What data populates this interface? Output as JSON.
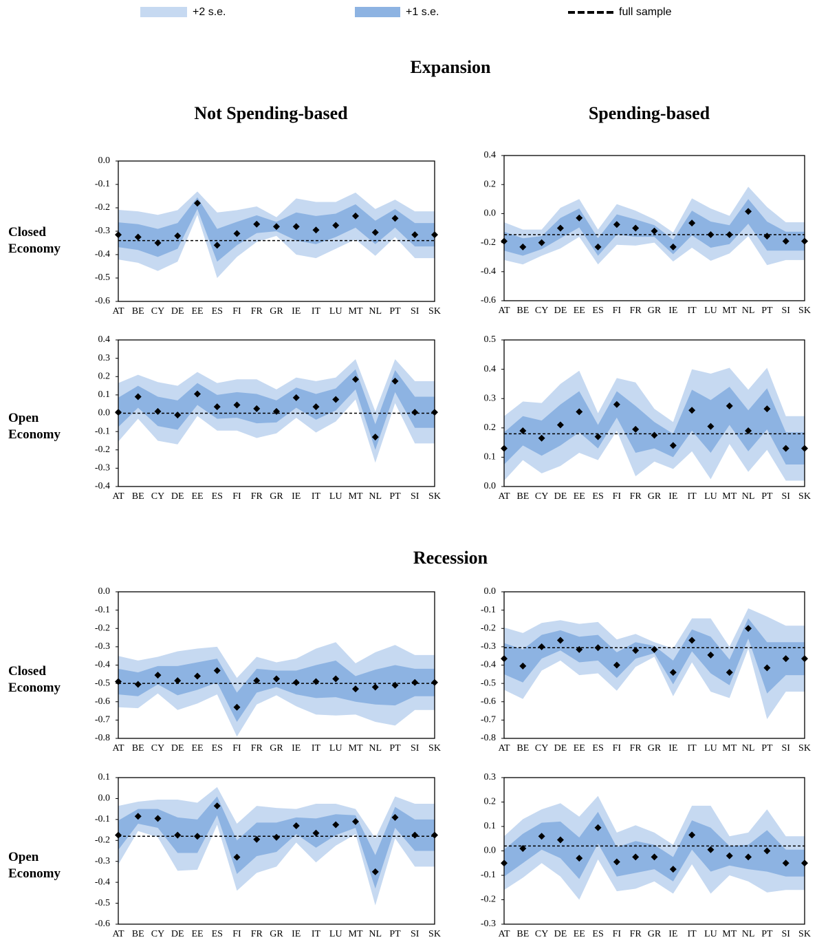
{
  "legend": [
    {
      "name": "+2 s.e.",
      "color": "#c6d9f1"
    },
    {
      "name": "+1 s.e.",
      "color": "#8db3e2"
    },
    {
      "name": "full sample",
      "color": "#000000"
    }
  ],
  "sections": [
    "Expansion",
    "Recession"
  ],
  "columns": [
    "Not Spending-based",
    "Spending-based"
  ],
  "row_labels": [
    "Closed Economy",
    "Open Economy",
    "Closed Economy",
    "Open Economy"
  ],
  "chart_data": [
    {
      "type": "band",
      "categories": [
        "AT",
        "BE",
        "CY",
        "DE",
        "EE",
        "ES",
        "FI",
        "FR",
        "GR",
        "IE",
        "IT",
        "LU",
        "MT",
        "NL",
        "PT",
        "SI",
        "SK"
      ],
      "values": [
        -0.315,
        -0.325,
        -0.35,
        -0.32,
        -0.18,
        -0.36,
        -0.31,
        -0.27,
        -0.28,
        -0.28,
        -0.295,
        -0.275,
        -0.235,
        -0.305,
        -0.245,
        -0.315,
        -0.315
      ],
      "se": [
        0.053,
        0.055,
        0.06,
        0.055,
        0.025,
        0.07,
        0.05,
        0.038,
        0.02,
        0.06,
        0.06,
        0.05,
        0.05,
        0.05,
        0.04,
        0.05,
        0.05
      ],
      "full_sample": -0.34,
      "ylim": [
        -0.6,
        0
      ],
      "yticks": [
        {
          "value": -0.6,
          "label": "-0.6"
        },
        {
          "value": -0.5,
          "label": "-0.5"
        },
        {
          "value": -0.4,
          "label": "-0.4"
        },
        {
          "value": -0.3,
          "label": "-0.3"
        },
        {
          "value": -0.2,
          "label": "-0.2"
        },
        {
          "value": -0.1,
          "label": "-0.1"
        },
        {
          "value": 0,
          "label": "0.0"
        }
      ]
    },
    {
      "type": "band",
      "categories": [
        "AT",
        "BE",
        "CY",
        "DE",
        "EE",
        "ES",
        "FI",
        "FR",
        "GR",
        "IE",
        "IT",
        "LU",
        "MT",
        "NL",
        "PT",
        "SI",
        "SK"
      ],
      "values": [
        -0.19,
        -0.23,
        -0.2,
        -0.1,
        -0.03,
        -0.23,
        -0.075,
        -0.1,
        -0.12,
        -0.23,
        -0.065,
        -0.145,
        -0.145,
        0.015,
        -0.155,
        -0.19,
        -0.19
      ],
      "se": [
        0.065,
        0.06,
        0.045,
        0.07,
        0.065,
        0.06,
        0.07,
        0.06,
        0.04,
        0.05,
        0.085,
        0.09,
        0.065,
        0.085,
        0.1,
        0.065,
        0.065
      ],
      "full_sample": -0.145,
      "ylim": [
        -0.6,
        0.4
      ],
      "yticks": [
        {
          "value": -0.6,
          "label": "-0.6"
        },
        {
          "value": -0.4,
          "label": "-0.4"
        },
        {
          "value": -0.2,
          "label": "-0.2"
        },
        {
          "value": 0,
          "label": "0.0"
        },
        {
          "value": 0.2,
          "label": "0.2"
        },
        {
          "value": 0.4,
          "label": "0.4"
        }
      ]
    },
    {
      "type": "band",
      "categories": [
        "AT",
        "BE",
        "CY",
        "DE",
        "EE",
        "ES",
        "FI",
        "FR",
        "GR",
        "IE",
        "IT",
        "LU",
        "MT",
        "NL",
        "PT",
        "SI",
        "SK"
      ],
      "values": [
        0.005,
        0.09,
        0.01,
        -0.01,
        0.105,
        0.035,
        0.045,
        0.025,
        0.01,
        0.085,
        0.035,
        0.075,
        0.185,
        -0.13,
        0.175,
        0.005,
        0.005
      ],
      "se": [
        0.08,
        0.06,
        0.08,
        0.08,
        0.06,
        0.065,
        0.07,
        0.08,
        0.06,
        0.055,
        0.07,
        0.06,
        0.055,
        0.07,
        0.06,
        0.085,
        0.085
      ],
      "full_sample": 0,
      "ylim": [
        -0.4,
        0.4
      ],
      "yticks": [
        {
          "value": -0.4,
          "label": "-0.4"
        },
        {
          "value": -0.3,
          "label": "-0.3"
        },
        {
          "value": -0.2,
          "label": "-0.2"
        },
        {
          "value": -0.1,
          "label": "-0.1"
        },
        {
          "value": 0,
          "label": "0.0"
        },
        {
          "value": 0.1,
          "label": "0.1"
        },
        {
          "value": 0.2,
          "label": "0.2"
        },
        {
          "value": 0.3,
          "label": "0.3"
        },
        {
          "value": 0.4,
          "label": "0.4"
        }
      ]
    },
    {
      "type": "band",
      "categories": [
        "AT",
        "BE",
        "CY",
        "DE",
        "EE",
        "ES",
        "FI",
        "FR",
        "GR",
        "IE",
        "IT",
        "LU",
        "MT",
        "NL",
        "PT",
        "SI",
        "SK"
      ],
      "values": [
        0.13,
        0.19,
        0.165,
        0.21,
        0.255,
        0.17,
        0.28,
        0.195,
        0.175,
        0.14,
        0.26,
        0.205,
        0.275,
        0.19,
        0.265,
        0.13,
        0.13
      ],
      "se": [
        0.055,
        0.05,
        0.06,
        0.07,
        0.07,
        0.04,
        0.045,
        0.08,
        0.045,
        0.04,
        0.07,
        0.09,
        0.065,
        0.07,
        0.07,
        0.055,
        0.055
      ],
      "full_sample": 0.18,
      "ylim": [
        0,
        0.5
      ],
      "yticks": [
        {
          "value": 0,
          "label": "0.0"
        },
        {
          "value": 0.1,
          "label": "0.1"
        },
        {
          "value": 0.2,
          "label": "0.2"
        },
        {
          "value": 0.3,
          "label": "0.3"
        },
        {
          "value": 0.4,
          "label": "0.4"
        },
        {
          "value": 0.5,
          "label": "0.5"
        }
      ]
    },
    {
      "type": "band",
      "categories": [
        "AT",
        "BE",
        "CY",
        "DE",
        "EE",
        "ES",
        "FI",
        "FR",
        "GR",
        "IE",
        "IT",
        "LU",
        "MT",
        "NL",
        "PT",
        "SI",
        "SK"
      ],
      "values": [
        -0.49,
        -0.505,
        -0.455,
        -0.485,
        -0.46,
        -0.43,
        -0.63,
        -0.485,
        -0.475,
        -0.495,
        -0.49,
        -0.475,
        -0.53,
        -0.52,
        -0.51,
        -0.495,
        -0.495
      ],
      "se": [
        0.07,
        0.065,
        0.05,
        0.08,
        0.075,
        0.065,
        0.08,
        0.065,
        0.045,
        0.065,
        0.09,
        0.1,
        0.07,
        0.095,
        0.11,
        0.075,
        0.075
      ],
      "full_sample": -0.5,
      "ylim": [
        -0.8,
        0
      ],
      "yticks": [
        {
          "value": -0.8,
          "label": "-0.8"
        },
        {
          "value": -0.7,
          "label": "-0.7"
        },
        {
          "value": -0.6,
          "label": "-0.6"
        },
        {
          "value": -0.5,
          "label": "-0.5"
        },
        {
          "value": -0.4,
          "label": "-0.4"
        },
        {
          "value": -0.3,
          "label": "-0.3"
        },
        {
          "value": -0.2,
          "label": "-0.2"
        },
        {
          "value": -0.1,
          "label": "-0.1"
        },
        {
          "value": 0,
          "label": "0.0"
        }
      ]
    },
    {
      "type": "band",
      "categories": [
        "AT",
        "BE",
        "CY",
        "DE",
        "EE",
        "ES",
        "FI",
        "FR",
        "GR",
        "IE",
        "IT",
        "LU",
        "MT",
        "NL",
        "PT",
        "SI",
        "SK"
      ],
      "values": [
        -0.365,
        -0.405,
        -0.3,
        -0.265,
        -0.315,
        -0.305,
        -0.4,
        -0.32,
        -0.315,
        -0.44,
        -0.265,
        -0.345,
        -0.44,
        -0.2,
        -0.415,
        -0.365,
        -0.365
      ],
      "se": [
        0.085,
        0.09,
        0.065,
        0.055,
        0.07,
        0.07,
        0.07,
        0.045,
        0.02,
        0.065,
        0.06,
        0.1,
        0.07,
        0.055,
        0.14,
        0.09,
        0.09
      ],
      "full_sample": -0.305,
      "ylim": [
        -0.8,
        0
      ],
      "yticks": [
        {
          "value": -0.8,
          "label": "-0.8"
        },
        {
          "value": -0.7,
          "label": "-0.7"
        },
        {
          "value": -0.6,
          "label": "-0.6"
        },
        {
          "value": -0.5,
          "label": "-0.5"
        },
        {
          "value": -0.4,
          "label": "-0.4"
        },
        {
          "value": -0.3,
          "label": "-0.3"
        },
        {
          "value": -0.2,
          "label": "-0.2"
        },
        {
          "value": -0.1,
          "label": "-0.1"
        },
        {
          "value": 0,
          "label": "0.0"
        }
      ]
    },
    {
      "type": "band",
      "categories": [
        "AT",
        "BE",
        "CY",
        "DE",
        "EE",
        "ES",
        "FI",
        "FR",
        "GR",
        "IE",
        "IT",
        "LU",
        "MT",
        "NL",
        "PT",
        "SI",
        "SK"
      ],
      "values": [
        -0.175,
        -0.085,
        -0.095,
        -0.175,
        -0.18,
        -0.035,
        -0.28,
        -0.195,
        -0.185,
        -0.13,
        -0.165,
        -0.125,
        -0.11,
        -0.35,
        -0.09,
        -0.175,
        -0.175
      ],
      "se": [
        0.07,
        0.035,
        0.045,
        0.085,
        0.08,
        0.045,
        0.08,
        0.08,
        0.07,
        0.04,
        0.07,
        0.05,
        0.03,
        0.08,
        0.05,
        0.075,
        0.075
      ],
      "full_sample": -0.18,
      "ylim": [
        -0.6,
        0.1
      ],
      "yticks": [
        {
          "value": -0.6,
          "label": "-0.6"
        },
        {
          "value": -0.5,
          "label": "-0.5"
        },
        {
          "value": -0.4,
          "label": "-0.4"
        },
        {
          "value": -0.3,
          "label": "-0.3"
        },
        {
          "value": -0.2,
          "label": "-0.2"
        },
        {
          "value": -0.1,
          "label": "-0.1"
        },
        {
          "value": 0,
          "label": "0.0"
        },
        {
          "value": 0.1,
          "label": "0.1"
        }
      ]
    },
    {
      "type": "band",
      "categories": [
        "AT",
        "BE",
        "CY",
        "DE",
        "EE",
        "ES",
        "FI",
        "FR",
        "GR",
        "IE",
        "IT",
        "LU",
        "MT",
        "NL",
        "PT",
        "SI",
        "SK"
      ],
      "values": [
        -0.05,
        0.01,
        0.06,
        0.045,
        -0.03,
        0.095,
        -0.045,
        -0.025,
        -0.025,
        -0.075,
        0.065,
        0.005,
        -0.02,
        -0.025,
        0,
        -0.05,
        -0.05
      ],
      "se": [
        0.055,
        0.06,
        0.055,
        0.075,
        0.085,
        0.065,
        0.06,
        0.065,
        0.05,
        0.05,
        0.06,
        0.09,
        0.04,
        0.05,
        0.085,
        0.055,
        0.055
      ],
      "full_sample": 0.02,
      "ylim": [
        -0.3,
        0.3
      ],
      "yticks": [
        {
          "value": -0.3,
          "label": "-0.3"
        },
        {
          "value": -0.2,
          "label": "-0.2"
        },
        {
          "value": -0.1,
          "label": "-0.1"
        },
        {
          "value": 0,
          "label": "0.0"
        },
        {
          "value": 0.1,
          "label": "0.1"
        },
        {
          "value": 0.2,
          "label": "0.2"
        },
        {
          "value": 0.3,
          "label": "0.3"
        }
      ]
    }
  ]
}
